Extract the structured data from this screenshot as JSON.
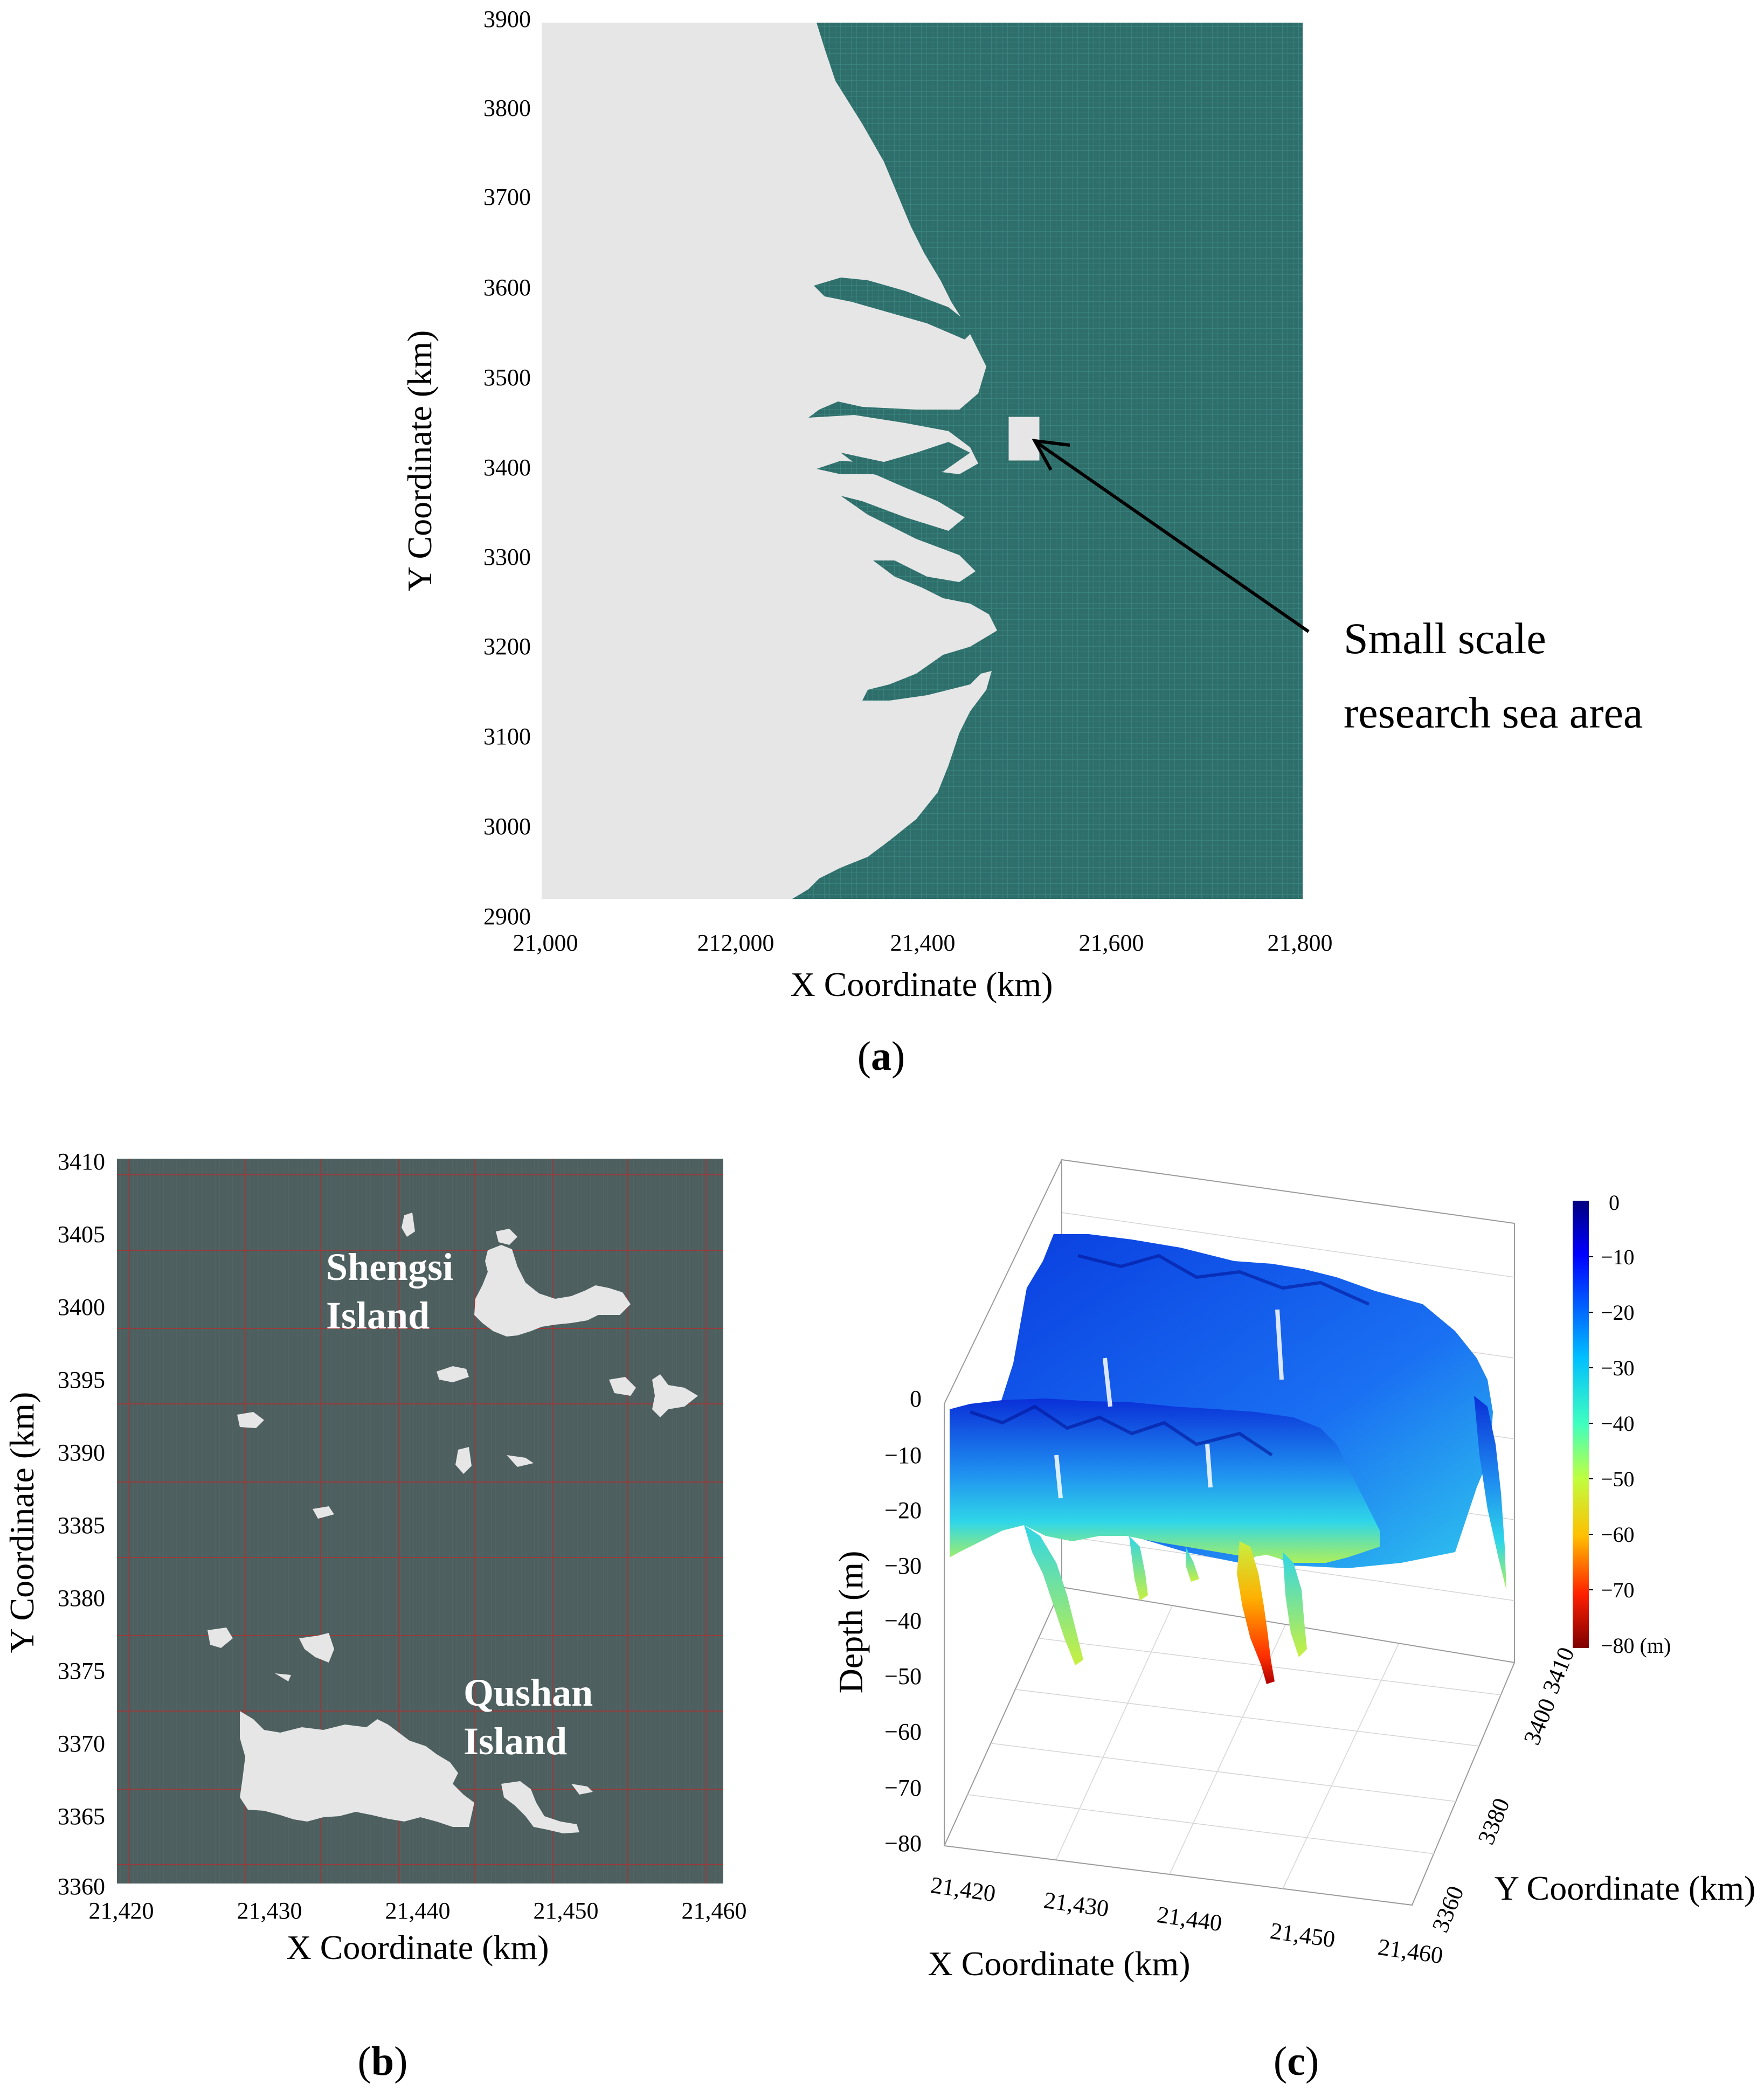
{
  "panel_a": {
    "label": "a",
    "xlabel": "X Coordinate (km)",
    "ylabel": "Y Coordinate (km)",
    "x_ticks": [
      "21,000",
      "212,000",
      "21,400",
      "21,600",
      "21,800"
    ],
    "y_ticks": [
      "3900",
      "3800",
      "3700",
      "3600",
      "3500",
      "3400",
      "3300",
      "3200",
      "3100",
      "3000",
      "2900"
    ],
    "annotation_line1": "Small scale",
    "annotation_line2": "research sea area"
  },
  "panel_b": {
    "label": "b",
    "xlabel": "X Coordinate (km)",
    "ylabel": "Y Coordinate (km)",
    "x_ticks": [
      "21,420",
      "21,430",
      "21,440",
      "21,450",
      "21,460"
    ],
    "y_ticks": [
      "3410",
      "3405",
      "3400",
      "3395",
      "3390",
      "3385",
      "3380",
      "3375",
      "3370",
      "3365",
      "3360"
    ],
    "island1_line1": "Shengsi",
    "island1_line2": "Island",
    "island2_line1": "Qushan",
    "island2_line2": "Island"
  },
  "panel_c": {
    "label": "c",
    "xlabel": "X Coordinate (km)",
    "ylabel": "Y Coordinate (km)",
    "zlabel": "Depth (m)",
    "x_ticks": [
      "21,420",
      "21,430",
      "21,440",
      "21,450",
      "21,460"
    ],
    "y_ticks": [
      "3360",
      "3380",
      "3400",
      "3410"
    ],
    "z_ticks": [
      "0",
      "−10",
      "−20",
      "−30",
      "−40",
      "−50",
      "−60",
      "−70",
      "−80"
    ],
    "colorbar_ticks": [
      "0",
      "−10",
      "−20",
      "−30",
      "−40",
      "−50",
      "−60",
      "−70",
      "−80 (m)"
    ]
  },
  "colors": {
    "sea_a": "#2f6f6b",
    "sea_b": "#4e5f5f",
    "land": "#e6e6e6",
    "grid_b": "#b03030"
  }
}
